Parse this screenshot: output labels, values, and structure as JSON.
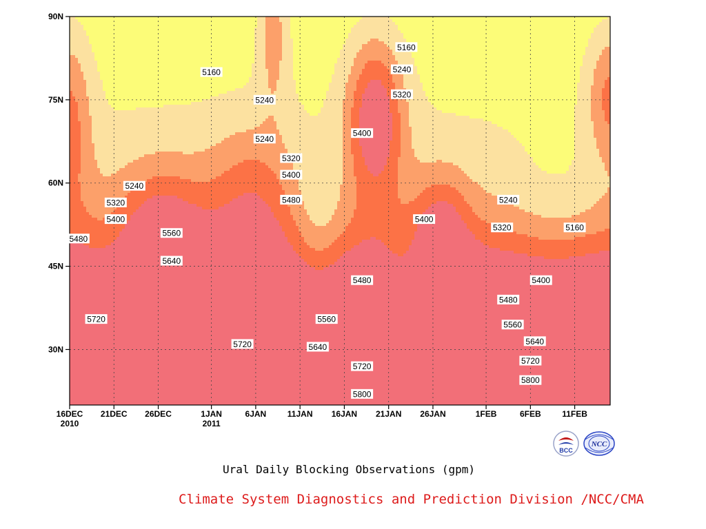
{
  "chart_data": {
    "type": "contour",
    "title": "Ural Daily Blocking Observations (gpm)",
    "xlabel": "",
    "ylabel": "",
    "x_ticks": [
      {
        "day": 0,
        "label": "16DEC",
        "sub": "2010"
      },
      {
        "day": 5,
        "label": "21DEC",
        "sub": ""
      },
      {
        "day": 10,
        "label": "26DEC",
        "sub": ""
      },
      {
        "day": 16,
        "label": "1JAN",
        "sub": "2011"
      },
      {
        "day": 21,
        "label": "6JAN",
        "sub": ""
      },
      {
        "day": 26,
        "label": "11JAN",
        "sub": ""
      },
      {
        "day": 31,
        "label": "16JAN",
        "sub": ""
      },
      {
        "day": 36,
        "label": "21JAN",
        "sub": ""
      },
      {
        "day": 41,
        "label": "26JAN",
        "sub": ""
      },
      {
        "day": 47,
        "label": "1FEB",
        "sub": ""
      },
      {
        "day": 52,
        "label": "6FEB",
        "sub": ""
      },
      {
        "day": 57,
        "label": "11FEB",
        "sub": ""
      }
    ],
    "x_range_days": [
      0,
      61
    ],
    "y_ticks": [
      {
        "lat": 30,
        "label": "30N"
      },
      {
        "lat": 45,
        "label": "45N"
      },
      {
        "lat": 60,
        "label": "60N"
      },
      {
        "lat": 75,
        "label": "75N"
      },
      {
        "lat": 90,
        "label": "90N"
      }
    ],
    "y_range_lat": [
      20,
      90
    ],
    "grid": true,
    "levels": [
      5160,
      5240,
      5320,
      5400,
      5480,
      5560,
      5640,
      5720,
      5800
    ],
    "colors": [
      "#0b1464",
      "#1428d6",
      "#4b56ee",
      "#5b8fe6",
      "#64c4fc",
      "#fcfc78",
      "#fce1a0",
      "#fca06a",
      "#fc7246",
      "#f26f78"
    ],
    "contour_labels": [
      {
        "day": 16,
        "lat": 80,
        "text": "5160"
      },
      {
        "day": 38,
        "lat": 84.5,
        "text": "5160"
      },
      {
        "day": 37.5,
        "lat": 80.5,
        "text": "5240"
      },
      {
        "day": 22,
        "lat": 75,
        "text": "5240"
      },
      {
        "day": 22,
        "lat": 68,
        "text": "5240"
      },
      {
        "day": 7.3,
        "lat": 59.5,
        "text": "5240"
      },
      {
        "day": 49.5,
        "lat": 57,
        "text": "5240"
      },
      {
        "day": 57,
        "lat": 52,
        "text": "5160"
      },
      {
        "day": 37.5,
        "lat": 76,
        "text": "5320"
      },
      {
        "day": 25,
        "lat": 64.5,
        "text": "5320"
      },
      {
        "day": 5.2,
        "lat": 56.5,
        "text": "5320"
      },
      {
        "day": 48.8,
        "lat": 52,
        "text": "5320"
      },
      {
        "day": 25,
        "lat": 61.5,
        "text": "5400"
      },
      {
        "day": 5.2,
        "lat": 53.5,
        "text": "5400"
      },
      {
        "day": 33,
        "lat": 69,
        "text": "5400"
      },
      {
        "day": 40,
        "lat": 53.5,
        "text": "5400"
      },
      {
        "day": 53.2,
        "lat": 42.5,
        "text": "5400"
      },
      {
        "day": 25,
        "lat": 57,
        "text": "5480"
      },
      {
        "day": 1,
        "lat": 50,
        "text": "5480"
      },
      {
        "day": 33,
        "lat": 42.5,
        "text": "5480"
      },
      {
        "day": 49.5,
        "lat": 39,
        "text": "5480"
      },
      {
        "day": 11.5,
        "lat": 51,
        "text": "5560"
      },
      {
        "day": 29,
        "lat": 35.5,
        "text": "5560"
      },
      {
        "day": 50,
        "lat": 34.5,
        "text": "5560"
      },
      {
        "day": 11.5,
        "lat": 46,
        "text": "5640"
      },
      {
        "day": 28,
        "lat": 30.5,
        "text": "5640"
      },
      {
        "day": 52.5,
        "lat": 31.5,
        "text": "5640"
      },
      {
        "day": 3,
        "lat": 35.5,
        "text": "5720"
      },
      {
        "day": 19.5,
        "lat": 31,
        "text": "5720"
      },
      {
        "day": 33,
        "lat": 27,
        "text": "5720"
      },
      {
        "day": 52,
        "lat": 28,
        "text": "5720"
      },
      {
        "day": 33,
        "lat": 22,
        "text": "5800"
      },
      {
        "day": 52,
        "lat": 24.5,
        "text": "5800"
      }
    ]
  },
  "footer": {
    "title": "Ural Daily Blocking Observations (gpm)",
    "credit": "Climate System Diagnostics and Prediction Division /NCC/CMA",
    "logo_left_text": "BCC",
    "logo_right_text": "NCC"
  }
}
